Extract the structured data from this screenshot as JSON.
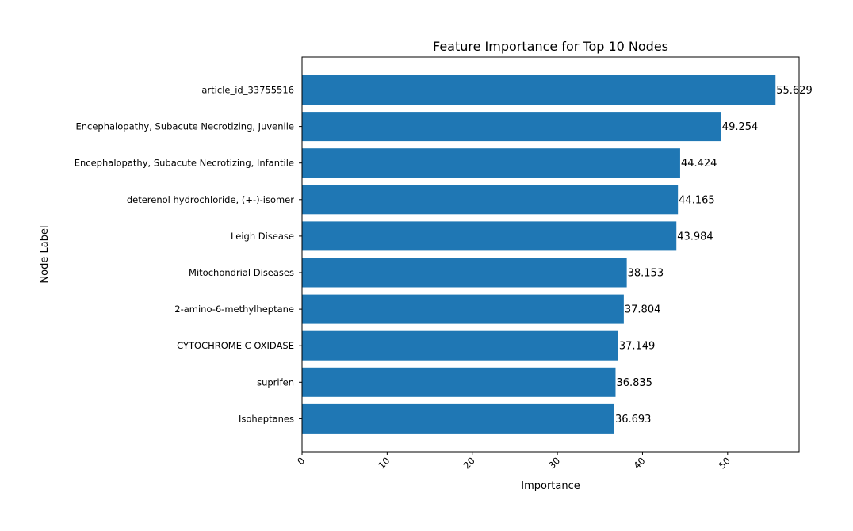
{
  "chart_data": {
    "type": "bar",
    "orientation": "horizontal",
    "title": "Feature Importance for Top 10 Nodes",
    "xlabel": "Importance",
    "ylabel": "Node Label",
    "categories": [
      "article_id_33755516",
      "Encephalopathy, Subacute Necrotizing, Juvenile",
      "Encephalopathy, Subacute Necrotizing, Infantile",
      "deterenol hydrochloride, (+-)-isomer",
      "Leigh Disease",
      "Mitochondrial Diseases",
      "2-amino-6-methylheptane",
      "CYTOCHROME C OXIDASE",
      "suprifen",
      "Isoheptanes"
    ],
    "values": [
      55.629,
      49.254,
      44.424,
      44.165,
      43.984,
      38.153,
      37.804,
      37.149,
      36.835,
      36.693
    ],
    "data_labels": [
      "55.629",
      "49.254",
      "44.424",
      "44.165",
      "43.984",
      "38.153",
      "37.804",
      "37.149",
      "36.835",
      "36.693"
    ],
    "xlim": [
      0,
      58.4
    ],
    "xticks": [
      0,
      10,
      20,
      30,
      40,
      50
    ],
    "xtick_labels": [
      "0",
      "10",
      "20",
      "30",
      "40",
      "50"
    ],
    "bar_color": "#1f77b4",
    "grid": false,
    "legend": "none"
  }
}
